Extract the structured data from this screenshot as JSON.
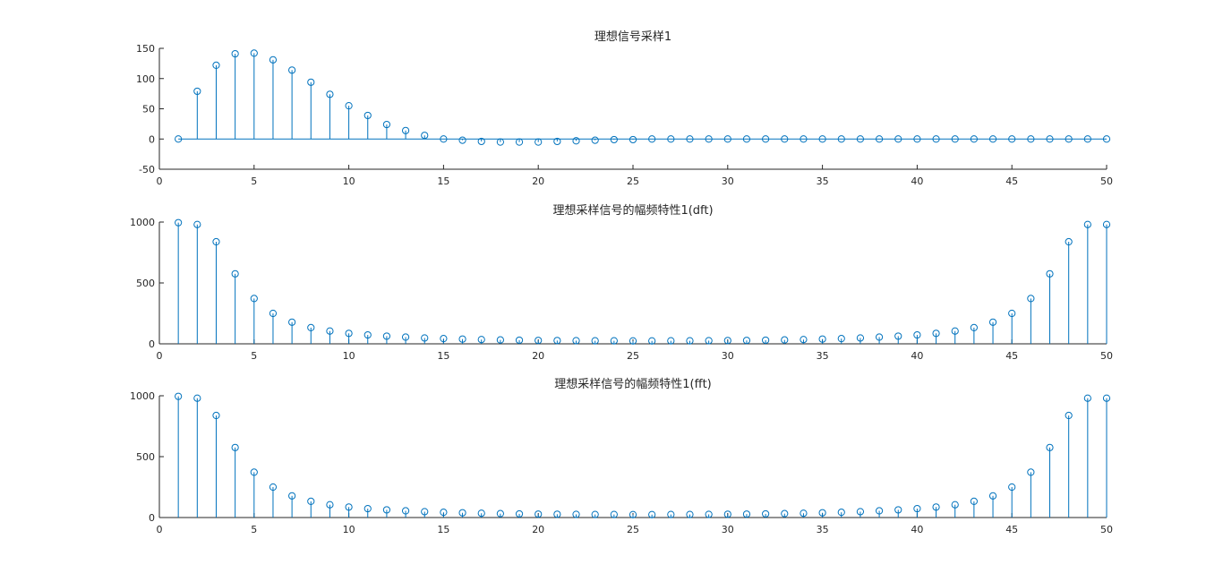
{
  "figure": {
    "background": "#ffffff",
    "axes_color": "#262626",
    "stem_color": "#0072bd"
  },
  "chart_data": [
    {
      "type": "stem",
      "title": "理想信号采样1",
      "xlim": [
        0,
        50
      ],
      "ylim": [
        -50,
        150
      ],
      "xticks": [
        0,
        5,
        10,
        15,
        20,
        25,
        30,
        35,
        40,
        45,
        50
      ],
      "yticks": [
        -50,
        0,
        50,
        100,
        150
      ],
      "baseline": true,
      "x": [
        1,
        2,
        3,
        4,
        5,
        6,
        7,
        8,
        9,
        10,
        11,
        12,
        13,
        14,
        15,
        16,
        17,
        18,
        19,
        20,
        21,
        22,
        23,
        24,
        25,
        26,
        27,
        28,
        29,
        30,
        31,
        32,
        33,
        34,
        35,
        36,
        37,
        38,
        39,
        40,
        41,
        42,
        43,
        44,
        45,
        46,
        47,
        48,
        49,
        50
      ],
      "values": [
        0,
        79,
        122,
        141,
        142,
        131,
        114,
        94,
        74,
        55,
        39,
        24,
        14,
        6,
        0,
        -2,
        -4,
        -5,
        -5,
        -5,
        -4,
        -3,
        -2,
        -1,
        -1,
        0,
        0,
        0,
        0,
        0,
        0,
        0,
        0,
        0,
        0,
        0,
        0,
        0,
        0,
        0,
        0,
        0,
        0,
        0,
        0,
        0,
        0,
        0,
        0,
        0
      ]
    },
    {
      "type": "stem",
      "title": "理想采样信号的幅频特性1(dft)",
      "xlim": [
        0,
        50
      ],
      "ylim": [
        0,
        1000
      ],
      "xticks": [
        0,
        5,
        10,
        15,
        20,
        25,
        30,
        35,
        40,
        45,
        50
      ],
      "yticks": [
        0,
        500,
        1000
      ],
      "baseline": false,
      "x": [
        1,
        2,
        3,
        4,
        5,
        6,
        7,
        8,
        9,
        10,
        11,
        12,
        13,
        14,
        15,
        16,
        17,
        18,
        19,
        20,
        21,
        22,
        23,
        24,
        25,
        26,
        27,
        28,
        29,
        30,
        31,
        32,
        33,
        34,
        35,
        36,
        37,
        38,
        39,
        40,
        41,
        42,
        43,
        44,
        45,
        46,
        47,
        48,
        49,
        50
      ],
      "values": [
        995,
        980,
        838,
        575,
        372,
        250,
        178,
        133,
        105,
        86,
        73,
        63,
        55,
        48,
        43,
        39,
        35,
        32,
        30,
        28,
        27,
        26,
        25,
        25,
        24,
        24,
        25,
        25,
        26,
        27,
        28,
        30,
        32,
        35,
        39,
        43,
        48,
        55,
        63,
        73,
        86,
        105,
        133,
        178,
        250,
        372,
        575,
        838,
        980,
        980
      ]
    },
    {
      "type": "stem",
      "title": "理想采样信号的幅频特性1(fft)",
      "xlim": [
        0,
        50
      ],
      "ylim": [
        0,
        1000
      ],
      "xticks": [
        0,
        5,
        10,
        15,
        20,
        25,
        30,
        35,
        40,
        45,
        50
      ],
      "yticks": [
        0,
        500,
        1000
      ],
      "baseline": false,
      "x": [
        1,
        2,
        3,
        4,
        5,
        6,
        7,
        8,
        9,
        10,
        11,
        12,
        13,
        14,
        15,
        16,
        17,
        18,
        19,
        20,
        21,
        22,
        23,
        24,
        25,
        26,
        27,
        28,
        29,
        30,
        31,
        32,
        33,
        34,
        35,
        36,
        37,
        38,
        39,
        40,
        41,
        42,
        43,
        44,
        45,
        46,
        47,
        48,
        49,
        50
      ],
      "values": [
        995,
        980,
        838,
        575,
        372,
        250,
        178,
        133,
        105,
        86,
        73,
        63,
        55,
        48,
        43,
        39,
        35,
        32,
        30,
        28,
        27,
        26,
        25,
        25,
        24,
        24,
        25,
        25,
        26,
        27,
        28,
        30,
        32,
        35,
        39,
        43,
        48,
        55,
        63,
        73,
        86,
        105,
        133,
        178,
        250,
        372,
        575,
        838,
        980,
        980
      ]
    }
  ]
}
